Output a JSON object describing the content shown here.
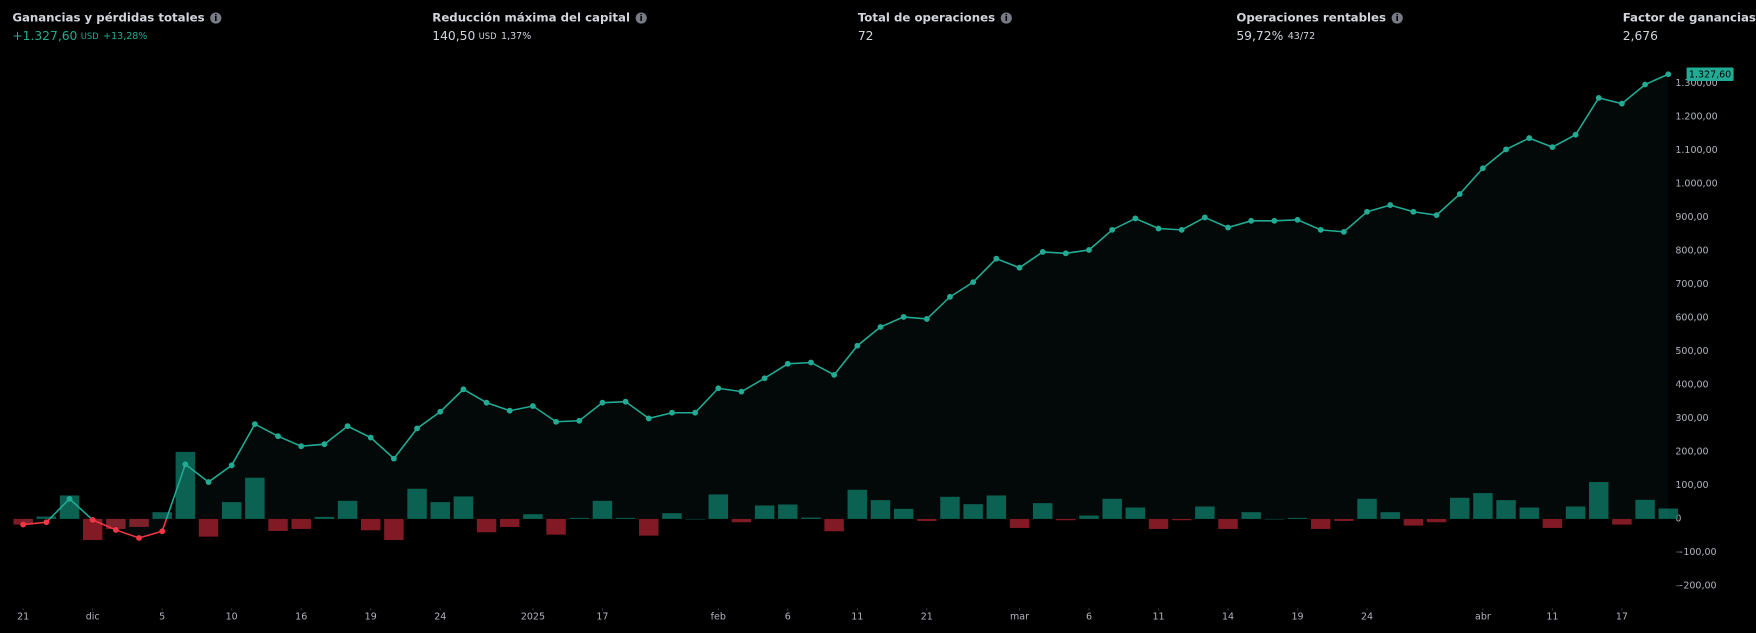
{
  "header": {
    "stats": [
      {
        "label": "Ganancias y pérdidas totales",
        "value": "+1.327,60",
        "unit": "USD",
        "extra": "+13,28%",
        "color": "#22ab94"
      },
      {
        "label": "Reducción máxima del capital",
        "value": "140,50",
        "unit": "USD",
        "extra": "1,37%",
        "color": "#d1d4dc"
      },
      {
        "label": "Total de operaciones",
        "value": "72",
        "color": "#d1d4dc"
      },
      {
        "label": "Operaciones rentables",
        "value": "59,72%",
        "extra": "43/72",
        "color": "#d1d4dc"
      },
      {
        "label": "Factor de ganancias",
        "value": "2,676",
        "color": "#d1d4dc"
      }
    ]
  },
  "chart_data": {
    "type": "line",
    "grid": false,
    "x": [
      1,
      2,
      3,
      4,
      5,
      6,
      7,
      8,
      9,
      10,
      11,
      12,
      13,
      14,
      15,
      16,
      17,
      18,
      19,
      20,
      21,
      22,
      23,
      24,
      25,
      26,
      27,
      28,
      29,
      30,
      31,
      32,
      33,
      34,
      35,
      36,
      37,
      38,
      39,
      40,
      41,
      42,
      43,
      44,
      45,
      46,
      47,
      48,
      49,
      50,
      51,
      52,
      53,
      54,
      55,
      56,
      57,
      58,
      59,
      60,
      61,
      62,
      63,
      64,
      65,
      66,
      67,
      68,
      69,
      70,
      71,
      72
    ],
    "xlim": [
      0,
      72.5
    ],
    "xticks": [
      {
        "value": 1,
        "label": "21"
      },
      {
        "value": 4,
        "label": "dic"
      },
      {
        "value": 7,
        "label": "5"
      },
      {
        "value": 10,
        "label": "10"
      },
      {
        "value": 13,
        "label": "16"
      },
      {
        "value": 16,
        "label": "19"
      },
      {
        "value": 19,
        "label": "24"
      },
      {
        "value": 23,
        "label": "2025"
      },
      {
        "value": 26,
        "label": "17"
      },
      {
        "value": 31,
        "label": "feb"
      },
      {
        "value": 34,
        "label": "6"
      },
      {
        "value": 37,
        "label": "11"
      },
      {
        "value": 40,
        "label": "21"
      },
      {
        "value": 44,
        "label": "mar"
      },
      {
        "value": 47,
        "label": "6"
      },
      {
        "value": 50,
        "label": "11"
      },
      {
        "value": 53,
        "label": "14"
      },
      {
        "value": 56,
        "label": "19"
      },
      {
        "value": 59,
        "label": "24"
      },
      {
        "value": 64,
        "label": "abr"
      },
      {
        "value": 67,
        "label": "11"
      },
      {
        "value": 70,
        "label": "17"
      }
    ],
    "ylim": [
      -240,
      1365
    ],
    "yticks": [
      {
        "value": -200,
        "label": "−200,00"
      },
      {
        "value": -100,
        "label": "−100,00"
      },
      0,
      {
        "value": 100,
        "label": "100,00"
      },
      {
        "value": 200,
        "label": "200,00"
      },
      {
        "value": 300,
        "label": "300,00"
      },
      {
        "value": 400,
        "label": "400,00"
      },
      {
        "value": 500,
        "label": "500,00"
      },
      {
        "value": 600,
        "label": "600,00"
      },
      {
        "value": 700,
        "label": "700,00"
      },
      {
        "value": 800,
        "label": "800,00"
      },
      {
        "value": 900,
        "label": "900,00"
      },
      {
        "value": 1000,
        "label": "1.000,00"
      },
      {
        "value": 1100,
        "label": "1.100,00"
      },
      {
        "value": 1200,
        "label": "1.200,00"
      },
      {
        "value": 1300,
        "label": "1.300,00"
      }
    ],
    "series": [
      {
        "type": "bar",
        "color": "#0c7564",
        "negative_color": "#a3202e",
        "values": [
          -17,
          7,
          70,
          -63,
          -30,
          -24,
          20,
          200,
          -53,
          50,
          123,
          -36,
          -30,
          6,
          54,
          -34,
          -63,
          90,
          50,
          67,
          -40,
          -24,
          14,
          -47,
          3,
          54,
          3,
          -50,
          17,
          0,
          73,
          -10,
          40,
          43,
          4,
          -37,
          87,
          56,
          30,
          -6,
          66,
          44,
          70,
          -27,
          47,
          -4,
          10,
          60,
          34,
          -30,
          -4,
          37,
          -30,
          20,
          0,
          3,
          -30,
          -6,
          60,
          20,
          -20,
          -10,
          63,
          77,
          56,
          34,
          -27,
          37,
          110,
          -17,
          57,
          31
        ]
      },
      {
        "type": "line",
        "color": "#22ab94",
        "negative_color": "#f23645",
        "values": [
          -17,
          -10,
          60,
          -3,
          -33,
          -57,
          -37,
          163,
          110,
          160,
          283,
          247,
          217,
          223,
          277,
          243,
          180,
          270,
          320,
          387,
          347,
          323,
          337,
          290,
          293,
          347,
          350,
          300,
          317,
          317,
          390,
          380,
          420,
          463,
          467,
          430,
          517,
          573,
          603,
          597,
          663,
          707,
          777,
          750,
          797,
          793,
          803,
          863,
          897,
          867,
          863,
          900,
          870,
          890,
          890,
          893,
          863,
          857,
          917,
          937,
          917,
          907,
          970,
          1047,
          1103,
          1137,
          1110,
          1147,
          1257,
          1240,
          1297,
          1327.6
        ],
        "value_labels": [
          null,
          null,
          null,
          null,
          null,
          null,
          null,
          null,
          null,
          null,
          null,
          null,
          null,
          null,
          null,
          null,
          null,
          null,
          null,
          null,
          null,
          null,
          null,
          null,
          null,
          null,
          null,
          null,
          null,
          null,
          null,
          null,
          null,
          null,
          null,
          null,
          null,
          null,
          null,
          null,
          null,
          null,
          null,
          null,
          null,
          null,
          null,
          null,
          null,
          null,
          null,
          null,
          null,
          null,
          null,
          null,
          null,
          null,
          null,
          null,
          null,
          null,
          null,
          null,
          null,
          null,
          null,
          null,
          null,
          null,
          null,
          "1.327,60"
        ]
      }
    ]
  }
}
